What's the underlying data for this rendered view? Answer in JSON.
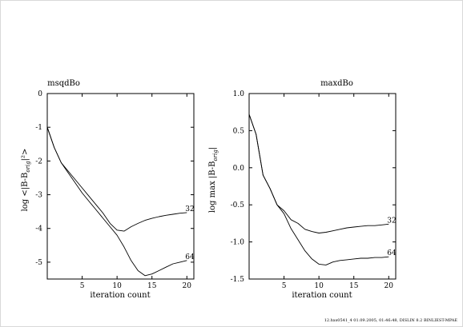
{
  "footer": "12.hxs0541_4      01.09.2005, 01:46:48, DISLIN 8.2 BINLIEST-MPAE",
  "chart_data": [
    {
      "type": "line",
      "title": "msqdBo",
      "xlabel": "iteration count",
      "ylabel": "log <|B-B_orig|²>",
      "ylabel_main": "log <|B-B",
      "ylabel_sub": "orig",
      "ylabel_tail": "|²>",
      "xlim": [
        0,
        21
      ],
      "ylim": [
        -5.5,
        0
      ],
      "xticks": [
        5,
        10,
        15,
        20
      ],
      "yticks": [
        0,
        -1,
        -2,
        -3,
        -4,
        -5
      ],
      "yticklabels": [
        "0",
        "-1",
        "-2",
        "-3",
        "-4",
        "-5"
      ],
      "series": [
        {
          "name": "32",
          "x": [
            0,
            1,
            2,
            3,
            4,
            5,
            6,
            7,
            8,
            9,
            10,
            11,
            12,
            13,
            14,
            15,
            16,
            17,
            18,
            19,
            20
          ],
          "y": [
            -1.0,
            -1.6,
            -2.05,
            -2.3,
            -2.55,
            -2.8,
            -3.05,
            -3.3,
            -3.55,
            -3.85,
            -4.05,
            -4.08,
            -3.95,
            -3.85,
            -3.76,
            -3.7,
            -3.65,
            -3.61,
            -3.58,
            -3.55,
            -3.53
          ]
        },
        {
          "name": "64",
          "x": [
            0,
            1,
            2,
            3,
            4,
            5,
            6,
            7,
            8,
            9,
            10,
            11,
            12,
            13,
            14,
            15,
            16,
            17,
            18,
            19,
            20
          ],
          "y": [
            -1.0,
            -1.6,
            -2.05,
            -2.35,
            -2.65,
            -2.95,
            -3.2,
            -3.45,
            -3.7,
            -3.95,
            -4.2,
            -4.55,
            -4.95,
            -5.25,
            -5.4,
            -5.35,
            -5.25,
            -5.15,
            -5.05,
            -5.0,
            -4.95
          ]
        }
      ]
    },
    {
      "type": "line",
      "title": "maxdBo",
      "xlabel": "iteration count",
      "ylabel": "log max |B-B_orig|",
      "ylabel_main": "log max |B-B",
      "ylabel_sub": "orig",
      "ylabel_tail": "|",
      "xlim": [
        0,
        21
      ],
      "ylim": [
        -1.5,
        1.0
      ],
      "xticks": [
        5,
        10,
        15,
        20
      ],
      "yticks": [
        1.0,
        0.5,
        0.0,
        -0.5,
        -1.0,
        -1.5
      ],
      "yticklabels": [
        "1.0",
        "0.5",
        "0.0",
        "-0.5",
        "-1.0",
        "-1.5"
      ],
      "series": [
        {
          "name": "32",
          "x": [
            0,
            1,
            2,
            3,
            4,
            5,
            6,
            7,
            8,
            9,
            10,
            11,
            12,
            13,
            14,
            15,
            16,
            17,
            18,
            19,
            20
          ],
          "y": [
            0.72,
            0.45,
            -0.1,
            -0.28,
            -0.5,
            -0.58,
            -0.7,
            -0.75,
            -0.83,
            -0.86,
            -0.88,
            -0.87,
            -0.85,
            -0.83,
            -0.81,
            -0.8,
            -0.79,
            -0.78,
            -0.78,
            -0.77,
            -0.76
          ]
        },
        {
          "name": "64",
          "x": [
            0,
            1,
            2,
            3,
            4,
            5,
            6,
            7,
            8,
            9,
            10,
            11,
            12,
            13,
            14,
            15,
            16,
            17,
            18,
            19,
            20
          ],
          "y": [
            0.72,
            0.45,
            -0.1,
            -0.28,
            -0.5,
            -0.62,
            -0.82,
            -0.97,
            -1.12,
            -1.23,
            -1.3,
            -1.31,
            -1.27,
            -1.25,
            -1.24,
            -1.23,
            -1.22,
            -1.22,
            -1.21,
            -1.21,
            -1.2
          ]
        }
      ]
    }
  ]
}
